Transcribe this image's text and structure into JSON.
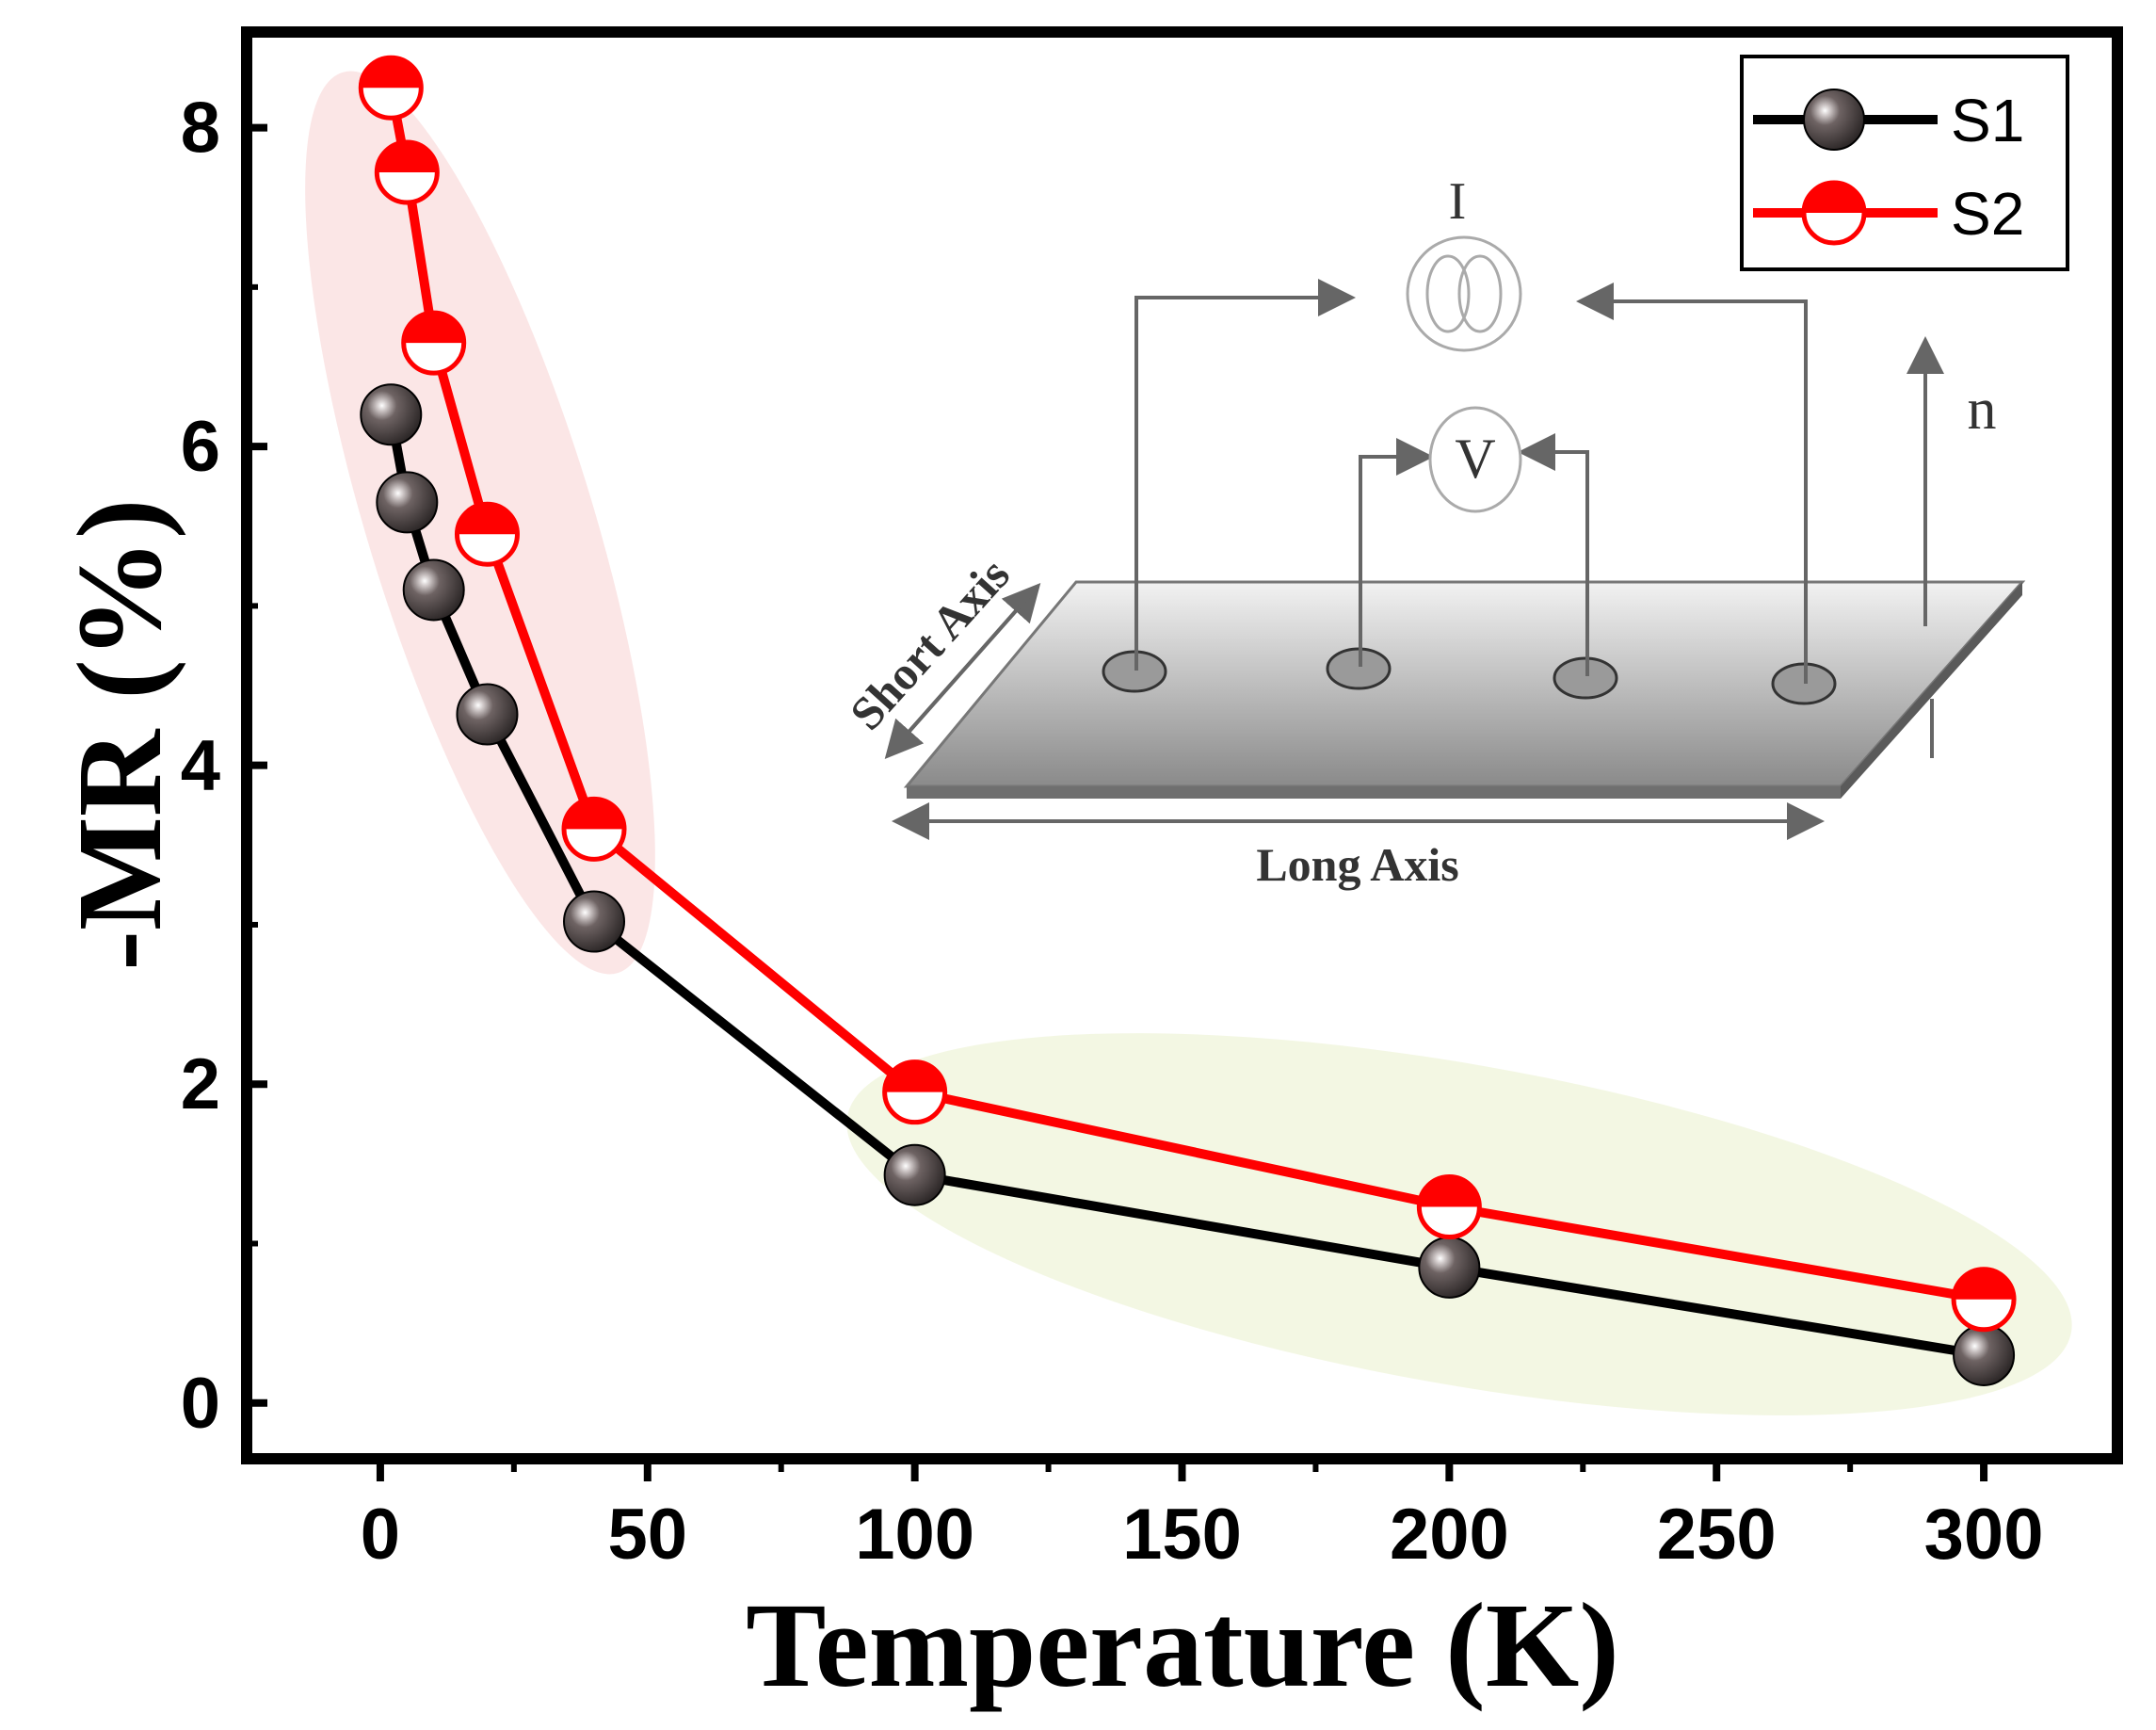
{
  "chart_data": {
    "type": "line",
    "title": "",
    "xlabel": "Temperature (K)",
    "ylabel": "-MR (%)",
    "xlim": [
      -25,
      325
    ],
    "ylim": [
      -0.35,
      8.6
    ],
    "xticks": [
      0,
      50,
      100,
      150,
      200,
      250,
      300
    ],
    "yticks": [
      0,
      2,
      4,
      6,
      8
    ],
    "x_tick_labels": [
      "0",
      "50",
      "100",
      "150",
      "200",
      "250",
      "300"
    ],
    "y_tick_labels": [
      "0",
      "2",
      "4",
      "6",
      "8"
    ],
    "grid": false,
    "legend_position": "top-right",
    "series": [
      {
        "name": "S1",
        "color": "#000000",
        "x": [
          2,
          5,
          10,
          20,
          40,
          100,
          200,
          300
        ],
        "y": [
          6.2,
          5.65,
          5.1,
          4.32,
          3.02,
          1.43,
          0.85,
          0.3
        ]
      },
      {
        "name": "S2",
        "color": "#ff0000",
        "x": [
          2,
          5,
          10,
          20,
          40,
          100,
          200,
          300
        ],
        "y": [
          8.25,
          7.72,
          6.65,
          5.45,
          3.6,
          1.95,
          1.23,
          0.65
        ]
      }
    ],
    "inset": {
      "current_label": "I",
      "voltage_label": "V",
      "normal_label": "n",
      "short_axis_label": "Short Axis",
      "long_axis_label": "Long Axis"
    }
  }
}
